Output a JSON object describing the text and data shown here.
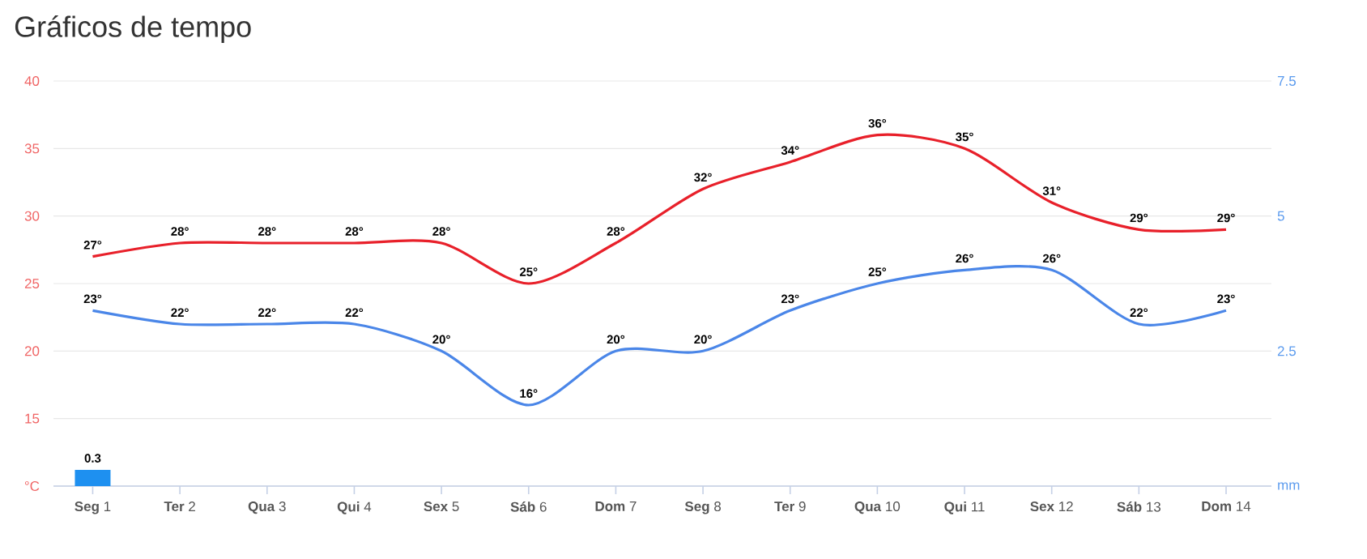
{
  "chart_data": {
    "type": "line",
    "title": "Gráficos de tempo",
    "categories": [
      "**Seg** 1",
      "**Ter** 2",
      "**Qua** 3",
      "**Qui** 4",
      "**Sex** 5",
      "**Sáb** 6",
      "**Dom** 7",
      "**Seg** 8",
      "**Ter** 9",
      "**Qua** 10",
      "**Qui** 11",
      "**Sex** 12",
      "**Sáb** 13",
      "**Dom** 14"
    ],
    "series": [
      {
        "color": "#e8202a",
        "values": [
          27,
          28,
          28,
          28,
          28,
          25,
          28,
          32,
          34,
          36,
          35,
          31,
          29,
          29
        ],
        "value_labels": [
          "27°",
          "28°",
          "28°",
          "28°",
          "28°",
          "25°",
          "28°",
          "32°",
          "34°",
          "36°",
          "35°",
          "31°",
          "29°",
          "29°"
        ]
      },
      {
        "color": "#4a86e8",
        "values": [
          23,
          22,
          22,
          22,
          20,
          16,
          20,
          20,
          23,
          25,
          26,
          26,
          22,
          23
        ],
        "value_labels": [
          "23°",
          "22°",
          "22°",
          "22°",
          "20°",
          "16°",
          "20°",
          "20°",
          "23°",
          "25°",
          "26°",
          "26°",
          "22°",
          "23°"
        ]
      },
      {
        "type": "bar",
        "axis": "y2",
        "color": "#1e90f0",
        "values": [
          0.3,
          null,
          null,
          null,
          null,
          null,
          null,
          null,
          null,
          null,
          null,
          null,
          null,
          null
        ],
        "value_labels": [
          "0.3",
          null,
          null,
          null,
          null,
          null,
          null,
          null,
          null,
          null,
          null,
          null,
          null,
          null
        ]
      }
    ],
    "ylim": [
      10,
      40
    ],
    "yticks": [
      {
        "value": 10,
        "label": "°C"
      },
      15,
      20,
      25,
      30,
      35,
      40
    ],
    "y2lim": [
      0,
      7.5
    ],
    "y2ticks": [
      {
        "value": 0,
        "label": "mm"
      },
      2.5,
      5,
      7.5
    ],
    "grid": "y",
    "marker": "none",
    "line_style": "solid"
  }
}
